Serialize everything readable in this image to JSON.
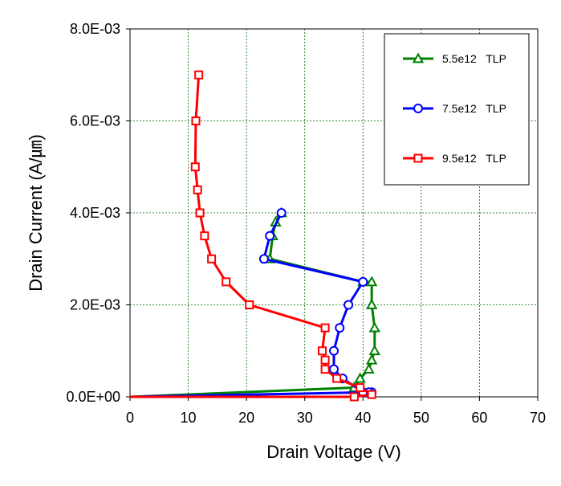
{
  "chart_data": {
    "type": "line",
    "xlabel": "Drain Voltage (V)",
    "ylabel": "Drain Current (A/㎛)",
    "xlim": [
      0,
      70
    ],
    "ylim": [
      0,
      0.008
    ],
    "x_ticks": [
      "0",
      "10",
      "20",
      "30",
      "40",
      "50",
      "60",
      "70"
    ],
    "y_ticks": [
      "0.0E+00",
      "2.0E-03",
      "4.0E-03",
      "6.0E-03",
      "8.0E-03"
    ],
    "grid": true,
    "legend_position": "top-right",
    "series": [
      {
        "name": "5.5e12   TLP",
        "color": "#008000",
        "marker": "triangle",
        "x": [
          0,
          38.5,
          39.5,
          41,
          41.5,
          42,
          42,
          41.5,
          41.5,
          40,
          24,
          24.5,
          25,
          26
        ],
        "y": [
          0,
          0.0002,
          0.0004,
          0.0006,
          0.0008,
          0.001,
          0.0015,
          0.002,
          0.0025,
          0.0025,
          0.003,
          0.0035,
          0.0038,
          0.004
        ]
      },
      {
        "name": "7.5e12   TLP",
        "color": "#0000ff",
        "marker": "circle",
        "x": [
          0,
          41.5,
          41,
          40,
          36.5,
          35,
          35,
          36,
          37.5,
          40,
          23,
          24,
          26
        ],
        "y": [
          0,
          0.0001,
          0.0001,
          0.0001,
          0.0004,
          0.0006,
          0.001,
          0.0015,
          0.002,
          0.0025,
          0.003,
          0.0035,
          0.004
        ]
      },
      {
        "name": "9.5e12   TLP",
        "color": "#ff0000",
        "marker": "square",
        "x": [
          0,
          38.5,
          41.5,
          39.5,
          35.5,
          33.5,
          33.5,
          33,
          33.5,
          20.5,
          16.5,
          14,
          12.8,
          12,
          11.6,
          11.2,
          11.3,
          11.8
        ],
        "y": [
          0,
          0,
          5e-05,
          0.0002,
          0.0004,
          0.0006,
          0.0008,
          0.001,
          0.0015,
          0.002,
          0.0025,
          0.003,
          0.0035,
          0.004,
          0.0045,
          0.005,
          0.006,
          0.007
        ]
      }
    ]
  }
}
